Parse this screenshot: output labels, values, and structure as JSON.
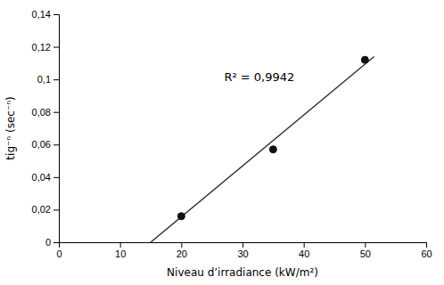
{
  "chart_data": {
    "type": "scatter",
    "xlabel": "Niveau d’irradiance (kW/m²)",
    "ylabel": "tig⁻ⁿ (sec⁻ⁿ)",
    "series": [
      {
        "type": "scatter",
        "color": "#111111",
        "x": [
          20,
          35,
          50
        ],
        "values": [
          0.016,
          0.057,
          0.112
        ]
      },
      {
        "type": "line",
        "color": "#333333",
        "x": [
          15.0,
          51.5
        ],
        "values": [
          0.0,
          0.114
        ]
      }
    ],
    "annotations": [
      {
        "text": "R² = 0,9942",
        "x": 27,
        "y": 0.101
      }
    ],
    "xlim": [
      0,
      60
    ],
    "ylim": [
      0,
      0.14
    ],
    "xticks": [
      0,
      10,
      20,
      30,
      40,
      50,
      60
    ],
    "yticks": [
      0,
      {
        "value": 0.02,
        "label": "0,02"
      },
      {
        "value": 0.04,
        "label": "0,04"
      },
      {
        "value": 0.06,
        "label": "0,06"
      },
      {
        "value": 0.08,
        "label": "0,08"
      },
      {
        "value": 0.1,
        "label": "0,1"
      },
      {
        "value": 0.12,
        "label": "0,12"
      },
      {
        "value": 0.14,
        "label": "0,14"
      }
    ],
    "grid": false
  }
}
